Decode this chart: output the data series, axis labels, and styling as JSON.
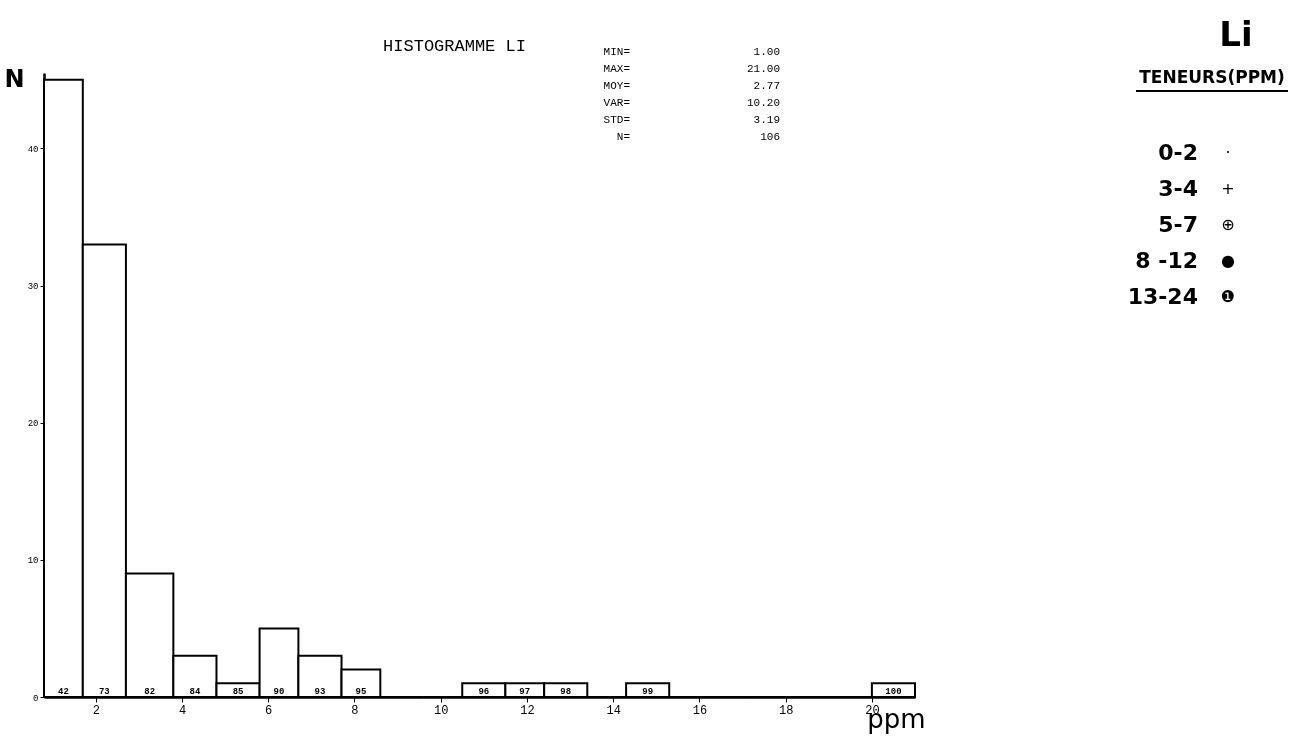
{
  "chart_data": {
    "type": "histogram",
    "title": "HISTOGRAMME LI",
    "xlabel": "ppm",
    "ylabel": "N",
    "bins": [
      0.8,
      1.7,
      2.7,
      3.8,
      4.8,
      5.8,
      6.7,
      7.7,
      8.6,
      9.6,
      10.5,
      11.5,
      12.4,
      13.4,
      14.3,
      15.3,
      16.2,
      17.2,
      18.1,
      19.1,
      20.0,
      21.0
    ],
    "values": [
      45,
      33,
      9,
      3,
      1,
      5,
      3,
      2,
      0,
      0,
      1,
      1,
      1,
      0,
      1,
      0,
      0,
      0,
      0,
      0,
      1
    ],
    "color": "#000000",
    "xlim": [
      0.8,
      21.0
    ],
    "xticks": [
      2,
      4,
      6,
      8,
      {
        "value": 10,
        "label": "10"
      },
      12,
      14,
      16,
      18,
      20
    ],
    "ylim": [
      0,
      45.5
    ],
    "yticks": [
      0,
      10,
      20,
      30,
      40
    ],
    "grid": false,
    "annotations": [
      "MIN= 1.00",
      "MAX= 21.00",
      "MOY= 2.77",
      "VAR= 10.20",
      "STD= 3.19",
      "N= 106",
      "Li",
      "TENEURS(PPM)",
      "0-2 ·",
      "3-4 +",
      "5-7 ⊕",
      "8 -12 ●",
      "13-24 ❶",
      "42",
      "73",
      "82",
      "84",
      "85",
      "90",
      "93",
      "95",
      "96",
      "97",
      "98",
      "99",
      "100"
    ]
  }
}
